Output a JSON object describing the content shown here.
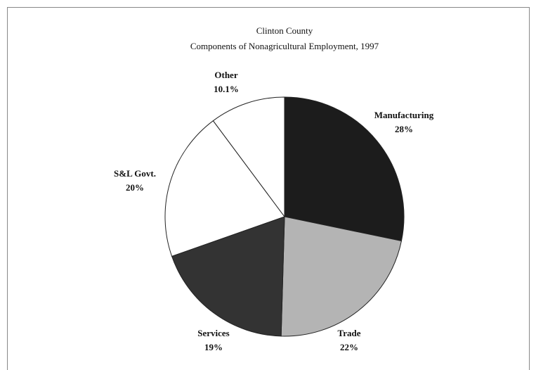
{
  "chart_data": {
    "type": "pie",
    "title": "Clinton County",
    "subtitle": "Components of Nonagricultural Employment, 1997",
    "categories": [
      "Manufacturing",
      "Trade",
      "Services",
      "S&L Govt.",
      "Other"
    ],
    "values": [
      28,
      22,
      19,
      20,
      10.1
    ],
    "value_labels": [
      "28%",
      "22%",
      "19%",
      "20%",
      "10.1%"
    ],
    "colors": [
      "#1c1c1c",
      "#b4b4b4",
      "#333333",
      "#ffffff",
      "#ffffff"
    ]
  }
}
